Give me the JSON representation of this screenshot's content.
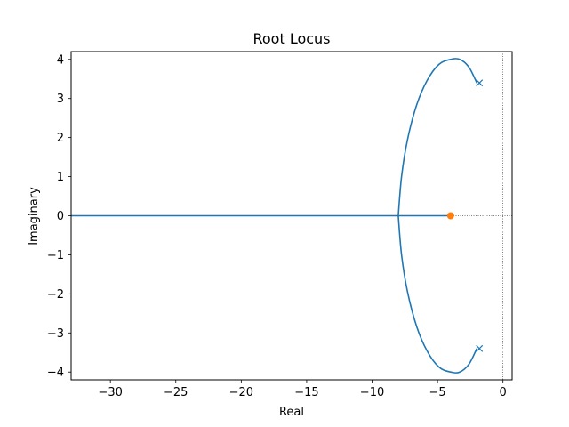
{
  "chart_data": {
    "type": "line",
    "title": "Root Locus",
    "xlabel": "Real",
    "ylabel": "Imaginary",
    "xlim": [
      -33,
      0.7
    ],
    "ylim": [
      -4.2,
      4.2
    ],
    "xticks": [
      -30,
      -25,
      -20,
      -15,
      -10,
      -5,
      0
    ],
    "yticks": [
      -4,
      -3,
      -2,
      -1,
      0,
      1,
      2,
      3,
      4
    ],
    "xtick_labels": [
      "−30",
      "−25",
      "−20",
      "−15",
      "−10",
      "−5",
      "0"
    ],
    "ytick_labels": [
      "−4",
      "−3",
      "−2",
      "−1",
      "0",
      "1",
      "2",
      "3",
      "4"
    ],
    "grid": false,
    "reference_lines": {
      "zero_real": true,
      "zero_imag": true
    },
    "series": [
      {
        "kind": "locus-branch-upper",
        "color": "#1f77b4",
        "x": [
          -2.0,
          -2.6,
          -3.3,
          -4.0,
          -4.9,
          -5.8,
          -6.6,
          -7.3,
          -7.75,
          -8.0
        ],
        "y": [
          3.4,
          3.8,
          4.0,
          4.0,
          3.87,
          3.46,
          2.83,
          1.94,
          1.0,
          0.0
        ]
      },
      {
        "kind": "locus-branch-lower",
        "color": "#1f77b4",
        "x": [
          -2.0,
          -2.6,
          -3.3,
          -4.0,
          -4.9,
          -5.8,
          -6.6,
          -7.3,
          -7.75,
          -8.0
        ],
        "y": [
          -3.4,
          -3.8,
          -4.0,
          -4.0,
          -3.87,
          -3.46,
          -2.83,
          -1.94,
          -1.0,
          0.0
        ]
      },
      {
        "kind": "locus-real-axis",
        "color": "#1f77b4",
        "x": [
          -4.0,
          -8.0,
          -33
        ],
        "y": [
          0,
          0,
          0
        ]
      }
    ],
    "poles": {
      "color": "#1f77b4",
      "marker": "x",
      "points": [
        {
          "re": -1.8,
          "im": 3.4
        },
        {
          "re": -1.8,
          "im": -3.4
        }
      ]
    },
    "zeros": {
      "color": "#ff7f0e",
      "marker": "o",
      "points": [
        {
          "re": -4.0,
          "im": 0.0
        }
      ]
    }
  }
}
